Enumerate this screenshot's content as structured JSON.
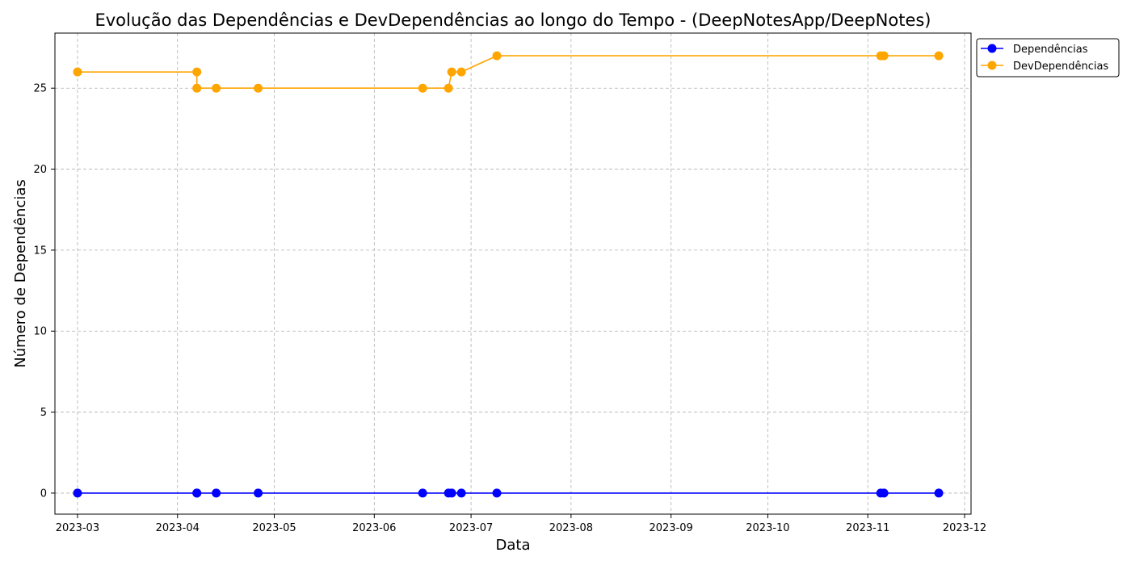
{
  "chart_data": {
    "type": "line",
    "title": "Evolução das Dependências e DevDependências ao longo do Tempo - (DeepNotesApp/DeepNotes)",
    "xlabel": "Data",
    "ylabel": "Número de Dependências",
    "ylim": [
      -1.3,
      28.4
    ],
    "xlim": [
      "2023-02-22",
      "2023-12-03"
    ],
    "x_ticks": [
      "2023-03",
      "2023-04",
      "2023-05",
      "2023-06",
      "2023-07",
      "2023-08",
      "2023-09",
      "2023-10",
      "2023-11",
      "2023-12"
    ],
    "y_ticks": [
      0,
      5,
      10,
      15,
      20,
      25
    ],
    "grid": true,
    "legend_position": "outside-top-right",
    "x": [
      "2023-03-01",
      "2023-04-07",
      "2023-04-07",
      "2023-04-13",
      "2023-04-26",
      "2023-06-16",
      "2023-06-24",
      "2023-06-25",
      "2023-06-28",
      "2023-07-09",
      "2023-11-05",
      "2023-11-06",
      "2023-11-23"
    ],
    "series": [
      {
        "name": "Dependências",
        "color": "#0000ff",
        "values": [
          0,
          0,
          0,
          0,
          0,
          0,
          0,
          0,
          0,
          0,
          0,
          0,
          0
        ]
      },
      {
        "name": "DevDependências",
        "color": "#ffa500",
        "values": [
          26,
          26,
          25,
          25,
          25,
          25,
          25,
          26,
          26,
          27,
          27,
          27,
          27
        ]
      }
    ]
  }
}
